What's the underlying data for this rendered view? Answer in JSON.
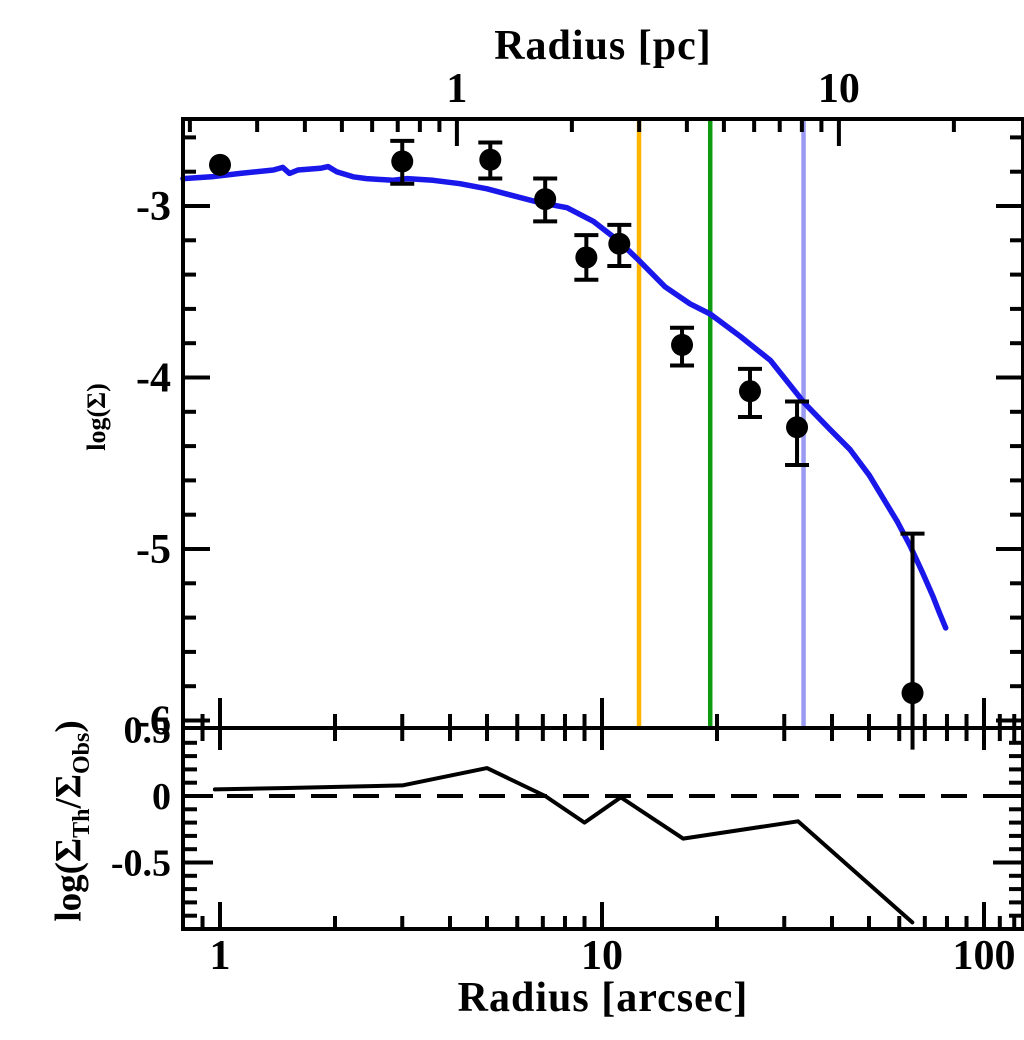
{
  "labels": {
    "top_title": "Radius [pc]",
    "bottom_title": "Radius [arcsec]",
    "main_ylabel": "log(Σ)",
    "residual_ylabel_parts": [
      {
        "t": "log(Σ",
        "sub": false
      },
      {
        "t": "Th",
        "sub": true
      },
      {
        "t": "/Σ",
        "sub": false
      },
      {
        "t": "Obs",
        "sub": true
      },
      {
        "t": ")",
        "sub": false
      }
    ]
  },
  "colors": {
    "axis": "#000000",
    "marker": "#000000",
    "model_curve": "#1a17ea",
    "residual_curve": "#000000",
    "vline_orange": "#ffb400",
    "vline_green": "#0f9b0f",
    "vline_periwinkle": "#9a9af2",
    "background": "#ffffff"
  },
  "chart_data": [
    {
      "panel": "main",
      "type": "scatter",
      "title": "",
      "xlabel_top": "Radius [pc]",
      "ylabel": "log(Σ)",
      "xscale": "log",
      "xlim_arcsec": [
        0.8,
        126
      ],
      "ylim": [
        -6.04,
        -2.49
      ],
      "arcsec_per_pc": 4.17,
      "grid": false,
      "legend": "none",
      "x_major_ticks_arcsec": [
        1,
        10,
        100
      ],
      "x_minor_ticks_arcsec": [
        0.9,
        2,
        3,
        4,
        5,
        6,
        7,
        8,
        9,
        20,
        30,
        40,
        50,
        60,
        70,
        80,
        90,
        110,
        120
      ],
      "top_major_ticks_pc": {
        "values": [
          1,
          10
        ],
        "labels": [
          "1",
          "10"
        ]
      },
      "top_minor_ticks_pc": [
        0.2,
        0.3,
        0.4,
        0.5,
        0.6,
        0.7,
        0.8,
        0.9,
        2,
        3,
        4,
        5,
        6,
        7,
        8,
        9,
        20
      ],
      "y_major_ticks": {
        "values": [
          -3,
          -4,
          -5,
          -6
        ],
        "labels": [
          "-3",
          "-4",
          "-5",
          "-6"
        ]
      },
      "y_minor_step": 0.2,
      "points": [
        {
          "r": 1.0,
          "logS": -2.76,
          "eu": 0.0,
          "ed": 0.0,
          "cap_down": true
        },
        {
          "r": 3.0,
          "logS": -2.74,
          "eu": 0.12,
          "ed": 0.13,
          "cap_down": true
        },
        {
          "r": 5.1,
          "logS": -2.73,
          "eu": 0.1,
          "ed": 0.11,
          "cap_down": true
        },
        {
          "r": 7.1,
          "logS": -2.96,
          "eu": 0.12,
          "ed": 0.13,
          "cap_down": true
        },
        {
          "r": 9.1,
          "logS": -3.3,
          "eu": 0.13,
          "ed": 0.13,
          "cap_down": true
        },
        {
          "r": 11.1,
          "logS": -3.22,
          "eu": 0.11,
          "ed": 0.13,
          "cap_down": true
        },
        {
          "r": 16.2,
          "logS": -3.81,
          "eu": 0.1,
          "ed": 0.12,
          "cap_down": true
        },
        {
          "r": 24.4,
          "logS": -4.08,
          "eu": 0.13,
          "ed": 0.15,
          "cap_down": true
        },
        {
          "r": 32.4,
          "logS": -4.29,
          "eu": 0.15,
          "ed": 0.22,
          "cap_down": true
        },
        {
          "r": 65.0,
          "logS": -5.84,
          "eu": 0.93,
          "ed": 0.33,
          "cap_down": false
        }
      ],
      "model_curve": {
        "color": "#1a17ea",
        "points": [
          [
            0.8,
            -2.84
          ],
          [
            0.95,
            -2.83
          ],
          [
            1.13,
            -2.81
          ],
          [
            1.38,
            -2.79
          ],
          [
            1.46,
            -2.775
          ],
          [
            1.52,
            -2.81
          ],
          [
            1.6,
            -2.79
          ],
          [
            1.83,
            -2.78
          ],
          [
            1.92,
            -2.77
          ],
          [
            2.02,
            -2.8
          ],
          [
            2.23,
            -2.83
          ],
          [
            2.42,
            -2.84
          ],
          [
            2.83,
            -2.85
          ],
          [
            3.09,
            -2.84
          ],
          [
            3.61,
            -2.85
          ],
          [
            4.25,
            -2.87
          ],
          [
            5.0,
            -2.9
          ],
          [
            5.85,
            -2.94
          ],
          [
            6.87,
            -2.98
          ],
          [
            8.1,
            -3.01
          ],
          [
            9.5,
            -3.09
          ],
          [
            11.0,
            -3.2
          ],
          [
            12.4,
            -3.31
          ],
          [
            14.6,
            -3.47
          ],
          [
            17.0,
            -3.57
          ],
          [
            19.2,
            -3.63
          ],
          [
            23.0,
            -3.76
          ],
          [
            27.6,
            -3.9
          ],
          [
            33.9,
            -4.15
          ],
          [
            39.4,
            -4.3
          ],
          [
            44.6,
            -4.42
          ],
          [
            50.1,
            -4.57
          ],
          [
            59.3,
            -4.84
          ],
          [
            64.0,
            -4.98
          ],
          [
            69.1,
            -5.14
          ],
          [
            73.3,
            -5.27
          ],
          [
            76.4,
            -5.37
          ],
          [
            79.4,
            -5.46
          ]
        ]
      },
      "vlines": [
        {
          "x_arcsec": 12.5,
          "color": "#ffb400",
          "name": "vline-orange"
        },
        {
          "x_arcsec": 19.2,
          "color": "#0f9b0f",
          "name": "vline-green"
        },
        {
          "x_arcsec": 33.7,
          "color": "#9a9af2",
          "name": "vline-periwinkle"
        }
      ]
    },
    {
      "panel": "residual",
      "type": "line",
      "xlabel": "Radius [arcsec]",
      "ylabel": "log(Σ_Th/Σ_Obs)",
      "xscale": "log",
      "xlim_arcsec": [
        0.8,
        126
      ],
      "ylim": [
        -1.0,
        0.51
      ],
      "x_major_ticks": {
        "values": [
          1,
          10,
          100
        ],
        "labels": [
          "1",
          "10",
          "100"
        ]
      },
      "y_major_ticks": {
        "values": [
          0.5,
          0,
          -0.5
        ],
        "labels": [
          "0.5",
          "0",
          "-0.5"
        ]
      },
      "y_minor_step": 0.1,
      "zero_line_dashed": true,
      "curve": [
        [
          0.97,
          0.05
        ],
        [
          1.5,
          0.06
        ],
        [
          3.0,
          0.08
        ],
        [
          5.0,
          0.21
        ],
        [
          7.1,
          0.0
        ],
        [
          9.0,
          -0.2
        ],
        [
          11.2,
          -0.01
        ],
        [
          16.3,
          -0.32
        ],
        [
          32.6,
          -0.19
        ],
        [
          64.9,
          -0.95
        ]
      ]
    }
  ]
}
